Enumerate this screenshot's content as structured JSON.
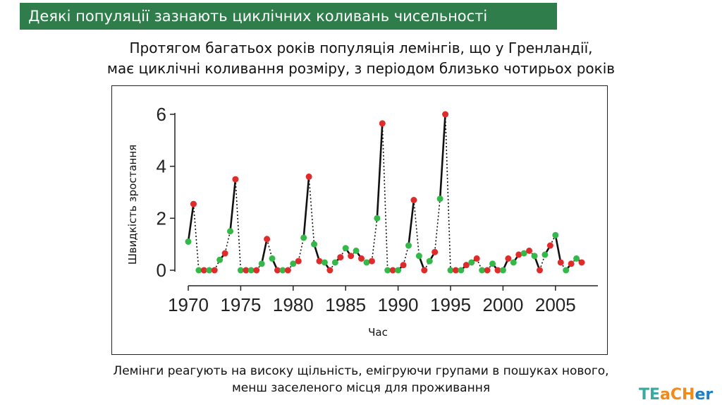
{
  "header": {
    "title": "Деякі популяції зазнають циклічних коливань чисельності"
  },
  "subtitle": {
    "line1": "Протягом багатьох років популяція лемінгів, що у Гренландії,",
    "line2": "має циклічні коливання розміру, з періодом близько чотирьох років"
  },
  "caption": {
    "line1": "Лемінги реагують на високу щільність, емігруючи групами в пошуках нового,",
    "line2": "менш заселеного місця для проживання"
  },
  "logo": {
    "part1": "TE",
    "part2": "aCH",
    "part3": "er"
  },
  "colors": {
    "header_bg": "#2e7d4b",
    "red_point": "#e02b2b",
    "green_point": "#35b84a",
    "line": "#111111"
  },
  "chart_data": {
    "type": "line",
    "xlabel": "Час",
    "ylabel": "Швидкість зростання",
    "xlim": [
      1970,
      2008
    ],
    "ylim": [
      0,
      6
    ],
    "xticks": [
      "1970",
      "1975",
      "1980",
      "1985",
      "1990",
      "1995",
      "2000",
      "2005"
    ],
    "yticks": [
      "0",
      "2",
      "4",
      "6"
    ],
    "legend": "none",
    "grid": false,
    "series": [
      {
        "points": [
          [
            1970.0,
            1.1,
            "green"
          ],
          [
            1970.5,
            2.55,
            "red"
          ],
          [
            1971.0,
            0.0,
            "green"
          ],
          [
            1971.5,
            0.0,
            "red"
          ],
          [
            1972.0,
            0.0,
            "green"
          ],
          [
            1972.5,
            0.0,
            "red"
          ],
          [
            1973.0,
            0.4,
            "green"
          ],
          [
            1973.5,
            0.65,
            "red"
          ],
          [
            1974.0,
            1.5,
            "green"
          ],
          [
            1974.5,
            3.5,
            "red"
          ],
          [
            1975.0,
            0.0,
            "green"
          ],
          [
            1975.5,
            0.0,
            "red"
          ],
          [
            1976.0,
            0.0,
            "green"
          ],
          [
            1976.5,
            0.0,
            "red"
          ],
          [
            1977.0,
            0.25,
            "green"
          ],
          [
            1977.5,
            1.2,
            "red"
          ],
          [
            1978.0,
            0.45,
            "green"
          ],
          [
            1978.5,
            0.0,
            "red"
          ],
          [
            1979.0,
            0.0,
            "green"
          ],
          [
            1979.5,
            0.0,
            "red"
          ],
          [
            1980.0,
            0.25,
            "green"
          ],
          [
            1980.5,
            0.35,
            "red"
          ],
          [
            1981.0,
            1.25,
            "green"
          ],
          [
            1981.5,
            3.6,
            "red"
          ],
          [
            1982.0,
            1.0,
            "green"
          ],
          [
            1982.5,
            0.35,
            "red"
          ],
          [
            1983.0,
            0.3,
            "green"
          ],
          [
            1983.5,
            0.0,
            "red"
          ],
          [
            1984.0,
            0.3,
            "green"
          ],
          [
            1984.5,
            0.5,
            "red"
          ],
          [
            1985.0,
            0.85,
            "green"
          ],
          [
            1985.5,
            0.55,
            "red"
          ],
          [
            1986.0,
            0.75,
            "green"
          ],
          [
            1986.5,
            0.45,
            "red"
          ],
          [
            1987.0,
            0.3,
            "green"
          ],
          [
            1987.5,
            0.35,
            "red"
          ],
          [
            1988.0,
            2.0,
            "green"
          ],
          [
            1988.5,
            5.65,
            "red"
          ],
          [
            1989.0,
            0.0,
            "green"
          ],
          [
            1989.5,
            0.0,
            "red"
          ],
          [
            1990.0,
            0.0,
            "green"
          ],
          [
            1990.5,
            0.2,
            "red"
          ],
          [
            1991.0,
            0.95,
            "green"
          ],
          [
            1991.5,
            2.7,
            "red"
          ],
          [
            1992.0,
            0.55,
            "green"
          ],
          [
            1992.5,
            0.0,
            "red"
          ],
          [
            1993.0,
            0.35,
            "green"
          ],
          [
            1993.5,
            0.7,
            "red"
          ],
          [
            1994.0,
            2.75,
            "green"
          ],
          [
            1994.5,
            6.0,
            "red"
          ],
          [
            1995.0,
            0.0,
            "green"
          ],
          [
            1995.5,
            0.0,
            "red"
          ],
          [
            1996.0,
            0.0,
            "green"
          ],
          [
            1996.5,
            0.2,
            "red"
          ],
          [
            1997.0,
            0.3,
            "green"
          ],
          [
            1997.5,
            0.45,
            "red"
          ],
          [
            1998.0,
            0.0,
            "green"
          ],
          [
            1998.5,
            0.0,
            "red"
          ],
          [
            1999.0,
            0.25,
            "green"
          ],
          [
            1999.5,
            0.0,
            "red"
          ],
          [
            2000.0,
            0.0,
            "green"
          ],
          [
            2000.5,
            0.45,
            "red"
          ],
          [
            2001.0,
            0.3,
            "green"
          ],
          [
            2001.5,
            0.6,
            "red"
          ],
          [
            2002.0,
            0.65,
            "green"
          ],
          [
            2002.5,
            0.75,
            "red"
          ],
          [
            2003.0,
            0.55,
            "green"
          ],
          [
            2003.5,
            0.0,
            "red"
          ],
          [
            2004.0,
            0.6,
            "green"
          ],
          [
            2004.5,
            0.95,
            "red"
          ],
          [
            2005.0,
            1.35,
            "green"
          ],
          [
            2005.5,
            0.3,
            "red"
          ],
          [
            2006.0,
            0.0,
            "green"
          ],
          [
            2006.5,
            0.25,
            "red"
          ],
          [
            2007.0,
            0.45,
            "green"
          ],
          [
            2007.5,
            0.3,
            "red"
          ]
        ]
      }
    ]
  }
}
